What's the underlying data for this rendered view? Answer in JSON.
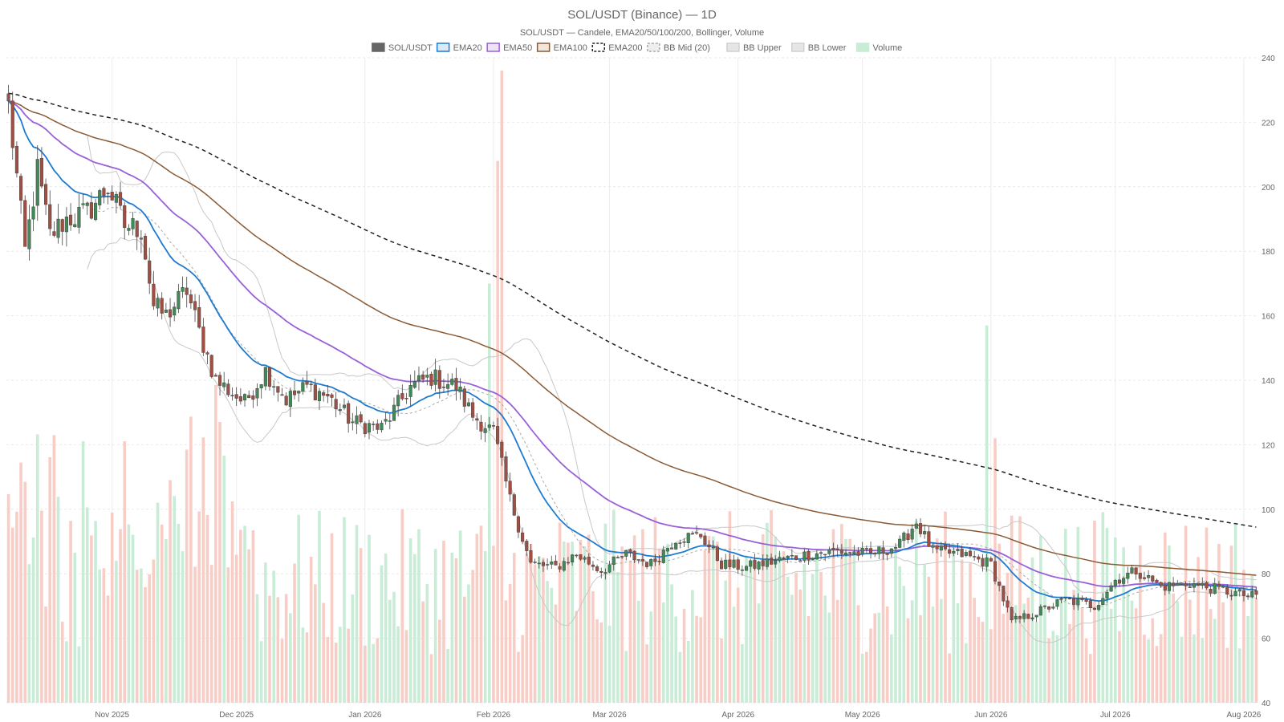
{
  "chart_data": {
    "type": "candlestick",
    "title": "SOL/USDT (Binance) — 1D",
    "subtitle": "SOL/USDT — Candele, EMA20/50/100/200, Bollinger, Volume",
    "legend": [
      {
        "name": "SOL/USDT",
        "kind": "solid",
        "fill": "#666666",
        "stroke": "#666666"
      },
      {
        "name": "EMA20",
        "kind": "solid",
        "fill": "#dbeaf7",
        "stroke": "#1f7bd0"
      },
      {
        "name": "EMA50",
        "kind": "solid",
        "fill": "#ece3f7",
        "stroke": "#9a60d8"
      },
      {
        "name": "EMA100",
        "kind": "solid",
        "fill": "#f2e6da",
        "stroke": "#8a5a34"
      },
      {
        "name": "EMA200",
        "kind": "dashed",
        "fill": "#ffffff",
        "stroke": "#222222"
      },
      {
        "name": "BB Mid (20)",
        "kind": "dashed",
        "fill": "#eeeeee",
        "stroke": "#aaaaaa"
      },
      {
        "name": "BB Upper",
        "kind": "solid",
        "fill": "#e6e6e6",
        "stroke": "#d0d0d0"
      },
      {
        "name": "BB Lower",
        "kind": "solid",
        "fill": "#e6e6e6",
        "stroke": "#d0d0d0"
      },
      {
        "name": "Volume",
        "kind": "solid",
        "fill": "#c8ecd6",
        "stroke": "#c8ecd6"
      }
    ],
    "x_axis": {
      "ticks": [
        "Nov 2025",
        "Dec 2025",
        "Jan 2026",
        "Feb 2026",
        "Mar 2026",
        "Apr 2026",
        "May 2026",
        "Jun 2026",
        "Jul 2026",
        "Aug 2026"
      ],
      "tick_dates": [
        "2025-11-01",
        "2025-12-01",
        "2026-01-01",
        "2026-02-01",
        "2026-03-01",
        "2026-04-01",
        "2026-05-01",
        "2026-06-01",
        "2026-07-01",
        "2026-08-01"
      ],
      "range": [
        "2025-10-07",
        "2026-08-04"
      ]
    },
    "y_axis": {
      "position": "right",
      "ticks": [
        "240",
        "220",
        "200",
        "180",
        "160",
        "140",
        "120",
        "100",
        "80",
        "60",
        "40"
      ],
      "min": 40,
      "max": 240
    },
    "grid": true,
    "legend_position": "top-center",
    "colors": {
      "up": "#3f8a55",
      "down": "#a14f42",
      "vol_up": "#c8ecd6",
      "vol_down": "#f8cdc6",
      "ema20": "#1f7bd0",
      "ema50": "#9a60d8",
      "ema100": "#8a5a34",
      "ema200": "#222222",
      "bb_mid": "#aaaaaa",
      "bb_band": "#c8c8c8"
    },
    "close_anchors": [
      [
        "2025-10-07",
        225
      ],
      [
        "2025-10-09",
        203
      ],
      [
        "2025-10-11",
        180
      ],
      [
        "2025-10-14",
        205
      ],
      [
        "2025-10-17",
        185
      ],
      [
        "2025-10-21",
        190
      ],
      [
        "2025-10-26",
        192
      ],
      [
        "2025-10-31",
        200
      ],
      [
        "2025-11-04",
        188
      ],
      [
        "2025-11-08",
        187
      ],
      [
        "2025-11-11",
        163
      ],
      [
        "2025-11-14",
        160
      ],
      [
        "2025-11-19",
        168
      ],
      [
        "2025-11-22",
        155
      ],
      [
        "2025-11-26",
        140
      ],
      [
        "2025-12-03",
        133
      ],
      [
        "2025-12-08",
        143
      ],
      [
        "2025-12-13",
        134
      ],
      [
        "2025-12-18",
        138
      ],
      [
        "2025-12-23",
        135
      ],
      [
        "2025-12-29",
        127
      ],
      [
        "2026-01-05",
        125
      ],
      [
        "2026-01-12",
        138
      ],
      [
        "2026-01-17",
        141
      ],
      [
        "2026-01-23",
        138
      ],
      [
        "2026-01-27",
        129
      ],
      [
        "2026-02-01",
        124
      ],
      [
        "2026-02-05",
        103
      ],
      [
        "2026-02-10",
        83
      ],
      [
        "2026-02-16",
        82
      ],
      [
        "2026-02-21",
        86
      ],
      [
        "2026-02-27",
        81
      ],
      [
        "2026-03-05",
        86
      ],
      [
        "2026-03-11",
        83
      ],
      [
        "2026-03-17",
        91
      ],
      [
        "2026-03-23",
        92
      ],
      [
        "2026-03-28",
        83
      ],
      [
        "2026-04-03",
        82
      ],
      [
        "2026-04-10",
        84
      ],
      [
        "2026-04-18",
        86
      ],
      [
        "2026-04-25",
        87
      ],
      [
        "2026-05-03",
        86
      ],
      [
        "2026-05-10",
        89
      ],
      [
        "2026-05-14",
        96
      ],
      [
        "2026-05-18",
        87
      ],
      [
        "2026-05-25",
        86
      ],
      [
        "2026-06-01",
        83
      ],
      [
        "2026-06-06",
        65
      ],
      [
        "2026-06-12",
        68
      ],
      [
        "2026-06-19",
        72
      ],
      [
        "2026-06-26",
        70
      ],
      [
        "2026-07-01",
        78
      ],
      [
        "2026-07-06",
        81
      ],
      [
        "2026-07-12",
        76
      ],
      [
        "2026-07-19",
        77
      ],
      [
        "2026-07-26",
        75
      ],
      [
        "2026-08-03",
        73
      ]
    ],
    "volume_spikes": [
      [
        "2026-01-31",
        170
      ],
      [
        "2026-02-02",
        208
      ],
      [
        "2026-02-03",
        236
      ],
      [
        "2026-06-02",
        122
      ],
      [
        "2026-05-31",
        157
      ]
    ],
    "ema200_start": 229,
    "candle_count": 302
  }
}
